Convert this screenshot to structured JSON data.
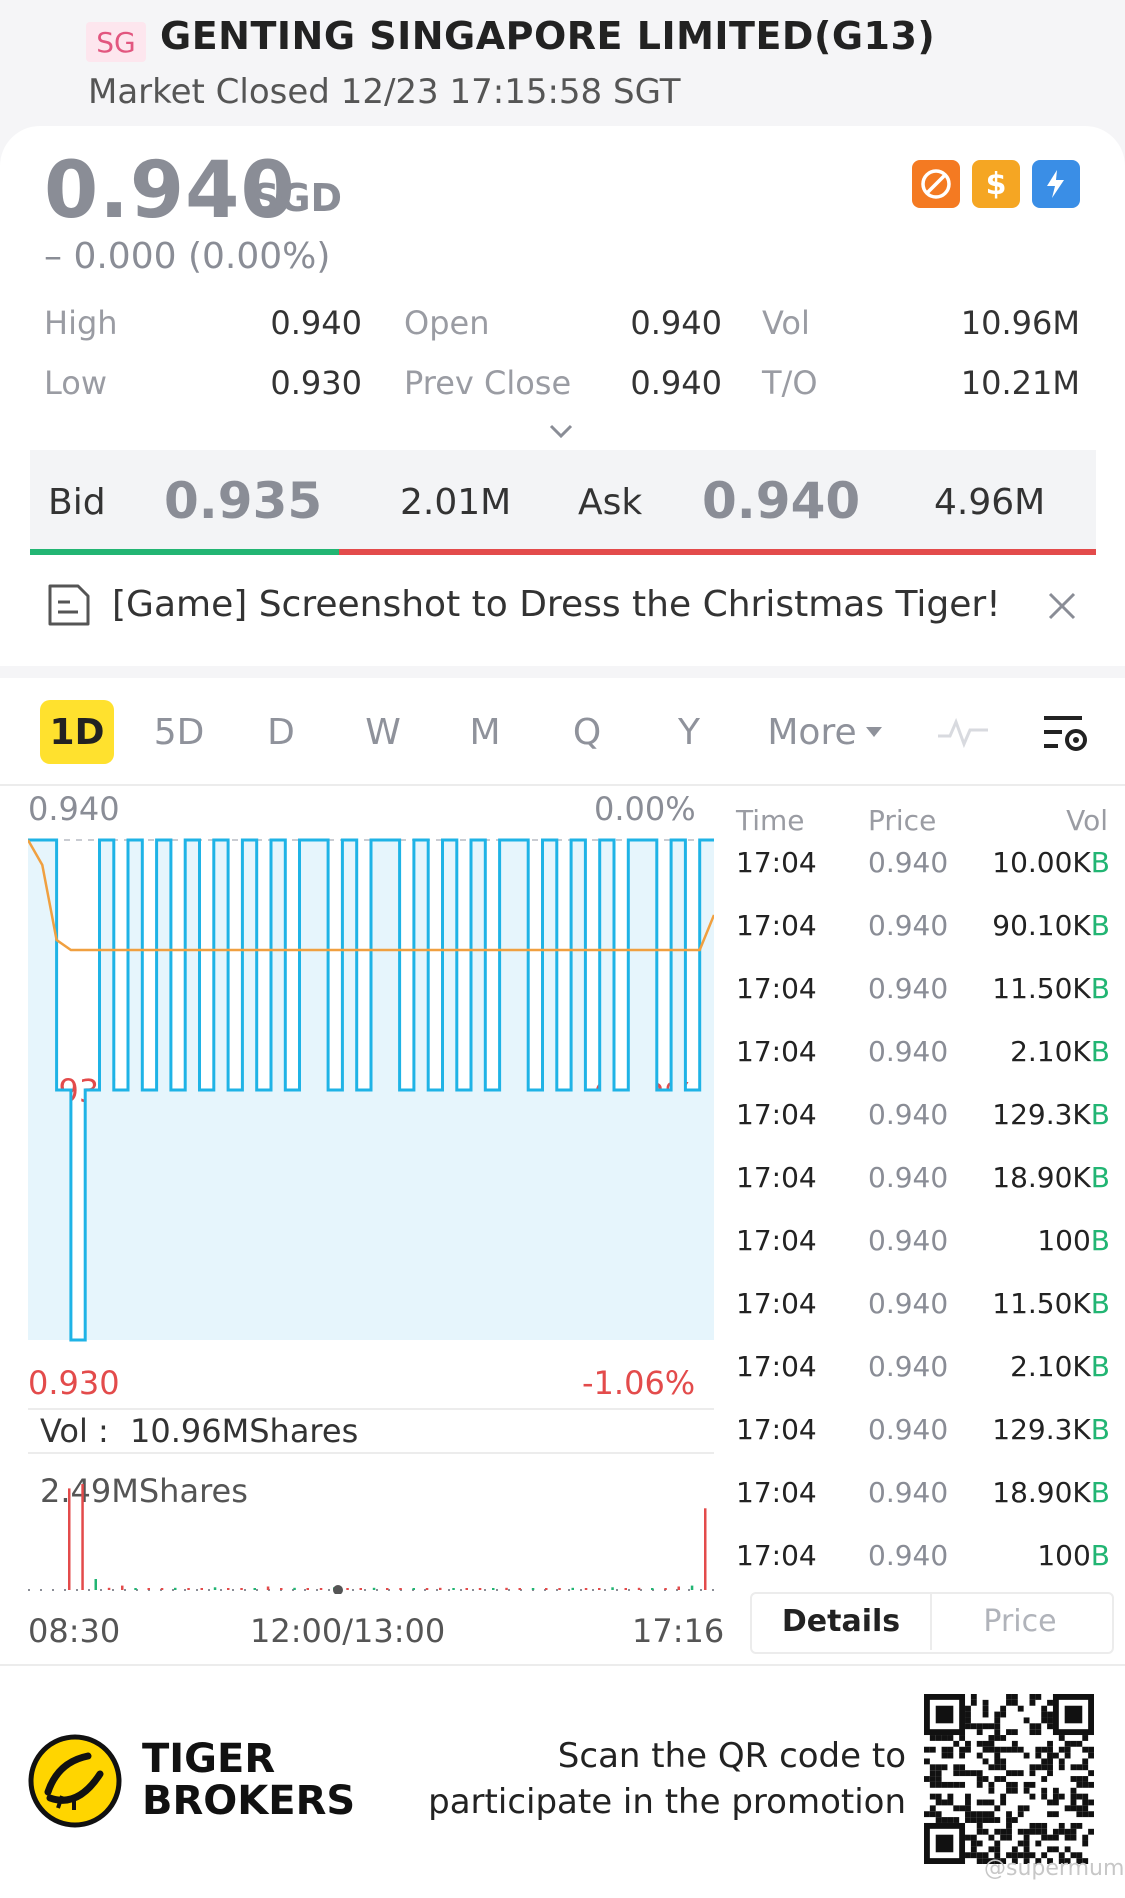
{
  "header": {
    "exchange_tag": "SG",
    "title": "GENTING SINGAPORE LIMITED(G13)",
    "status": "Market Closed 12/23 17:15:58 SGT"
  },
  "quote": {
    "price": "0.940",
    "currency": "SGD",
    "change": "– 0.000 (0.00%)",
    "badges": [
      {
        "icon": "no-short-icon",
        "color": "#f47a22",
        "label": "⊘"
      },
      {
        "icon": "dollar-icon",
        "color": "#f5a623",
        "label": "$"
      },
      {
        "icon": "lightning-icon",
        "color": "#3a8ee6",
        "label": "⚡"
      }
    ],
    "stats": [
      {
        "label": "High",
        "value": "0.940"
      },
      {
        "label": "Low",
        "value": "0.930"
      },
      {
        "label": "Open",
        "value": "0.940"
      },
      {
        "label": "Prev Close",
        "value": "0.940"
      },
      {
        "label": "Vol",
        "value": "10.96M"
      },
      {
        "label": "T/O",
        "value": "10.21M"
      }
    ],
    "bid_label": "Bid",
    "bid_price": "0.935",
    "bid_qty": "2.01M",
    "ask_label": "Ask",
    "ask_price": "0.940",
    "ask_qty": "4.96M",
    "bid_share": 0.29
  },
  "banner": {
    "text": "[Game] Screenshot to Dress the Christmas Tiger!"
  },
  "chart_tabs": [
    "1D",
    "5D",
    "D",
    "W",
    "M",
    "Q",
    "Y",
    "More"
  ],
  "chart_active_tab": "1D",
  "chart": {
    "y_top": "0.940",
    "y_mid": "0.935",
    "y_bot": "0.930",
    "pct_top": "0.00%",
    "pct_mid": "-0.53%",
    "pct_bot": "-1.06%",
    "vol_label": "Vol :",
    "vol_total": "10.96MShares",
    "vol_max": "2.49MShares",
    "x_start": "08:30",
    "x_mid": "12:00/13:00",
    "x_end": "17:16"
  },
  "chart_data": {
    "type": "line",
    "title": "",
    "xlabel": "",
    "ylabel": "",
    "ylim": [
      0.93,
      0.94
    ],
    "x_ticks": [
      "08:30",
      "12:00/13:00",
      "17:16"
    ],
    "series": [
      {
        "name": "",
        "color": "#1fb3e6",
        "values": [
          0.94,
          0.94,
          0.935,
          0.93,
          0.935,
          0.94,
          0.935,
          0.94,
          0.935,
          0.94,
          0.935,
          0.94,
          0.935,
          0.94,
          0.935,
          0.94,
          0.935,
          0.94,
          0.935,
          0.94,
          0.94,
          0.935,
          0.94,
          0.935,
          0.94,
          0.94,
          0.935,
          0.94,
          0.935,
          0.94,
          0.935,
          0.94,
          0.935,
          0.94,
          0.94,
          0.935,
          0.94,
          0.935,
          0.94,
          0.935,
          0.94,
          0.935,
          0.94,
          0.94,
          0.935,
          0.94,
          0.935,
          0.94,
          0.94
        ]
      },
      {
        "name": "",
        "color": "#f0a040",
        "values": [
          0.94,
          0.9395,
          0.938,
          0.9378,
          0.9378,
          0.9378,
          0.9378,
          0.9378,
          0.9378,
          0.9378,
          0.9378,
          0.9378,
          0.9378,
          0.9378,
          0.9378,
          0.9378,
          0.9378,
          0.9378,
          0.9378,
          0.9378,
          0.9378,
          0.9378,
          0.9378,
          0.9378,
          0.9378,
          0.9378,
          0.9378,
          0.9378,
          0.9378,
          0.9378,
          0.9378,
          0.9378,
          0.9378,
          0.9378,
          0.9378,
          0.9378,
          0.9378,
          0.9378,
          0.9378,
          0.9378,
          0.9378,
          0.9378,
          0.9378,
          0.9378,
          0.9378,
          0.9378,
          0.9378,
          0.9378,
          0.9385
        ]
      }
    ],
    "volume": {
      "max": 2.49,
      "values_m": [
        2.3,
        2.4,
        0.25,
        0.05,
        0.1,
        0.02,
        0.04,
        0.03,
        0.05,
        0.02,
        0.03,
        0.06,
        0.02,
        0.04,
        0.03,
        0.08,
        0.02,
        0.05,
        0.03,
        0.02,
        0.06,
        0.04,
        0.03,
        0.05,
        0.02,
        0.04,
        0.03,
        0.02,
        0.05,
        0.03,
        0.04,
        0.02,
        0.03,
        0.05,
        0.02,
        0.04,
        0.03,
        0.02,
        0.05,
        0.03,
        0.04,
        0.06,
        0.02,
        0.05,
        0.03,
        0.04,
        0.08,
        0.1,
        1.85
      ],
      "colors": [
        "#e34b4b",
        "#e34b4b",
        "#22b573"
      ]
    }
  },
  "trades": {
    "headers": [
      "Time",
      "Price",
      "Vol"
    ],
    "rows": [
      {
        "time": "17:04",
        "price": "0.940",
        "vol": "10.00K",
        "side": "B"
      },
      {
        "time": "17:04",
        "price": "0.940",
        "vol": "90.10K",
        "side": "B"
      },
      {
        "time": "17:04",
        "price": "0.940",
        "vol": "11.50K",
        "side": "B"
      },
      {
        "time": "17:04",
        "price": "0.940",
        "vol": "2.10K",
        "side": "B"
      },
      {
        "time": "17:04",
        "price": "0.940",
        "vol": "129.3K",
        "side": "B"
      },
      {
        "time": "17:04",
        "price": "0.940",
        "vol": "18.90K",
        "side": "B"
      },
      {
        "time": "17:04",
        "price": "0.940",
        "vol": "100",
        "side": "B"
      },
      {
        "time": "17:04",
        "price": "0.940",
        "vol": "11.50K",
        "side": "B"
      },
      {
        "time": "17:04",
        "price": "0.940",
        "vol": "2.10K",
        "side": "B"
      },
      {
        "time": "17:04",
        "price": "0.940",
        "vol": "129.3K",
        "side": "B"
      },
      {
        "time": "17:04",
        "price": "0.940",
        "vol": "18.90K",
        "side": "B"
      },
      {
        "time": "17:04",
        "price": "0.940",
        "vol": "100",
        "side": "B"
      }
    ],
    "tab_details": "Details",
    "tab_price": "Price"
  },
  "footer": {
    "brand_line1": "TIGER",
    "brand_line2": "BROKERS",
    "promo_line1": "Scan the QR code to",
    "promo_line2": "participate in the promotion",
    "watermark": "@supermum"
  }
}
